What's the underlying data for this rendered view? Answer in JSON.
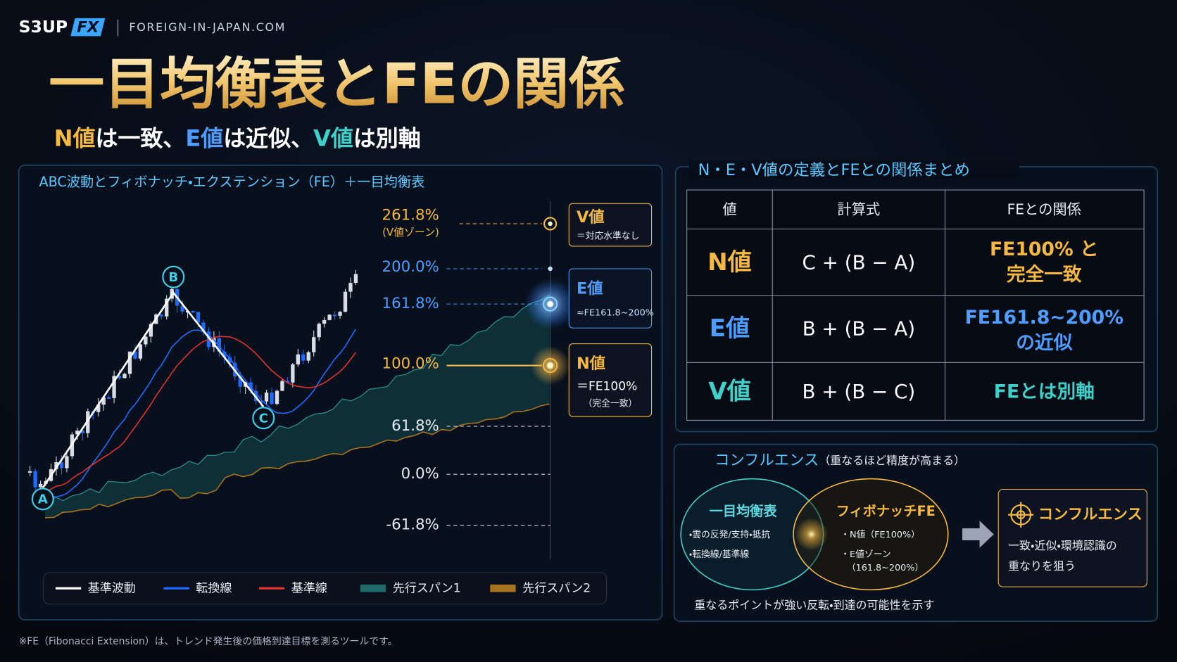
{
  "header": {
    "brand": "S3UP",
    "brand_fx": "FX",
    "site": "FOREIGN-IN-JAPAN.COM",
    "title": "一目均衡表とFEの関係",
    "subtitle": [
      "N値",
      "は一致、",
      "E値",
      "は近似、",
      "V値",
      "は別軸"
    ]
  },
  "chart_panel": {
    "title": "ABC波動とフィボナッチ・エクステンション（FE）＋一目均衡表",
    "levels": [
      {
        "label": "261.8%",
        "sub": "(V値ゾーン)"
      },
      {
        "label": "200.0%"
      },
      {
        "label": "161.8%"
      },
      {
        "label": "100.0%"
      },
      {
        "label": "61.8%"
      },
      {
        "label": "0.0%"
      },
      {
        "label": "-61.8%"
      }
    ],
    "points": [
      "A",
      "B",
      "C"
    ],
    "callouts": [
      {
        "title": "V値",
        "text": "＝対応水準なし"
      },
      {
        "title": "E値",
        "text": "≈FE161.8~200%"
      },
      {
        "title": "N値",
        "text": "＝FE100%",
        "sub": "（完全一致）"
      }
    ],
    "legend": [
      "基準波動",
      "転換線",
      "基準線",
      "先行スパン1",
      "先行スパン2"
    ]
  },
  "table": {
    "title": "N・E・V値の定義とFEとの関係まとめ",
    "headers": [
      "値",
      "計算式",
      "FEとの関係"
    ],
    "rows": [
      [
        "N値",
        "C + (B − A)",
        [
          "FE100% と",
          "完全一致"
        ]
      ],
      [
        "E値",
        "B + (B − A)",
        [
          "FE161.8~200%",
          "の近似"
        ]
      ],
      [
        "V値",
        "B + (B − C)",
        [
          "FEとは別軸"
        ]
      ]
    ]
  },
  "confluence": {
    "title": "コンフルエンス",
    "title_note": "（重なるほど精度が高まる）",
    "left_title": "一目均衡表",
    "left_items": [
      "・雲の反発/支持・抵抗",
      "・転換線/基準線"
    ],
    "right_title": "フィボナッチFE",
    "right_items": [
      "・N値（FE100%）",
      "・E値ゾーン",
      "（161.8~200%）"
    ],
    "result_title": "コンフルエンス",
    "result_lines": [
      "一致・近似・環境認識の",
      "重なりを狙う"
    ],
    "note": "重なるポイントが強い反転・到達の可能性を示す"
  },
  "footnote": "※FE（Fibonacci Extension）は、トレンド発生後の価格到達目標を測るツールです。"
}
